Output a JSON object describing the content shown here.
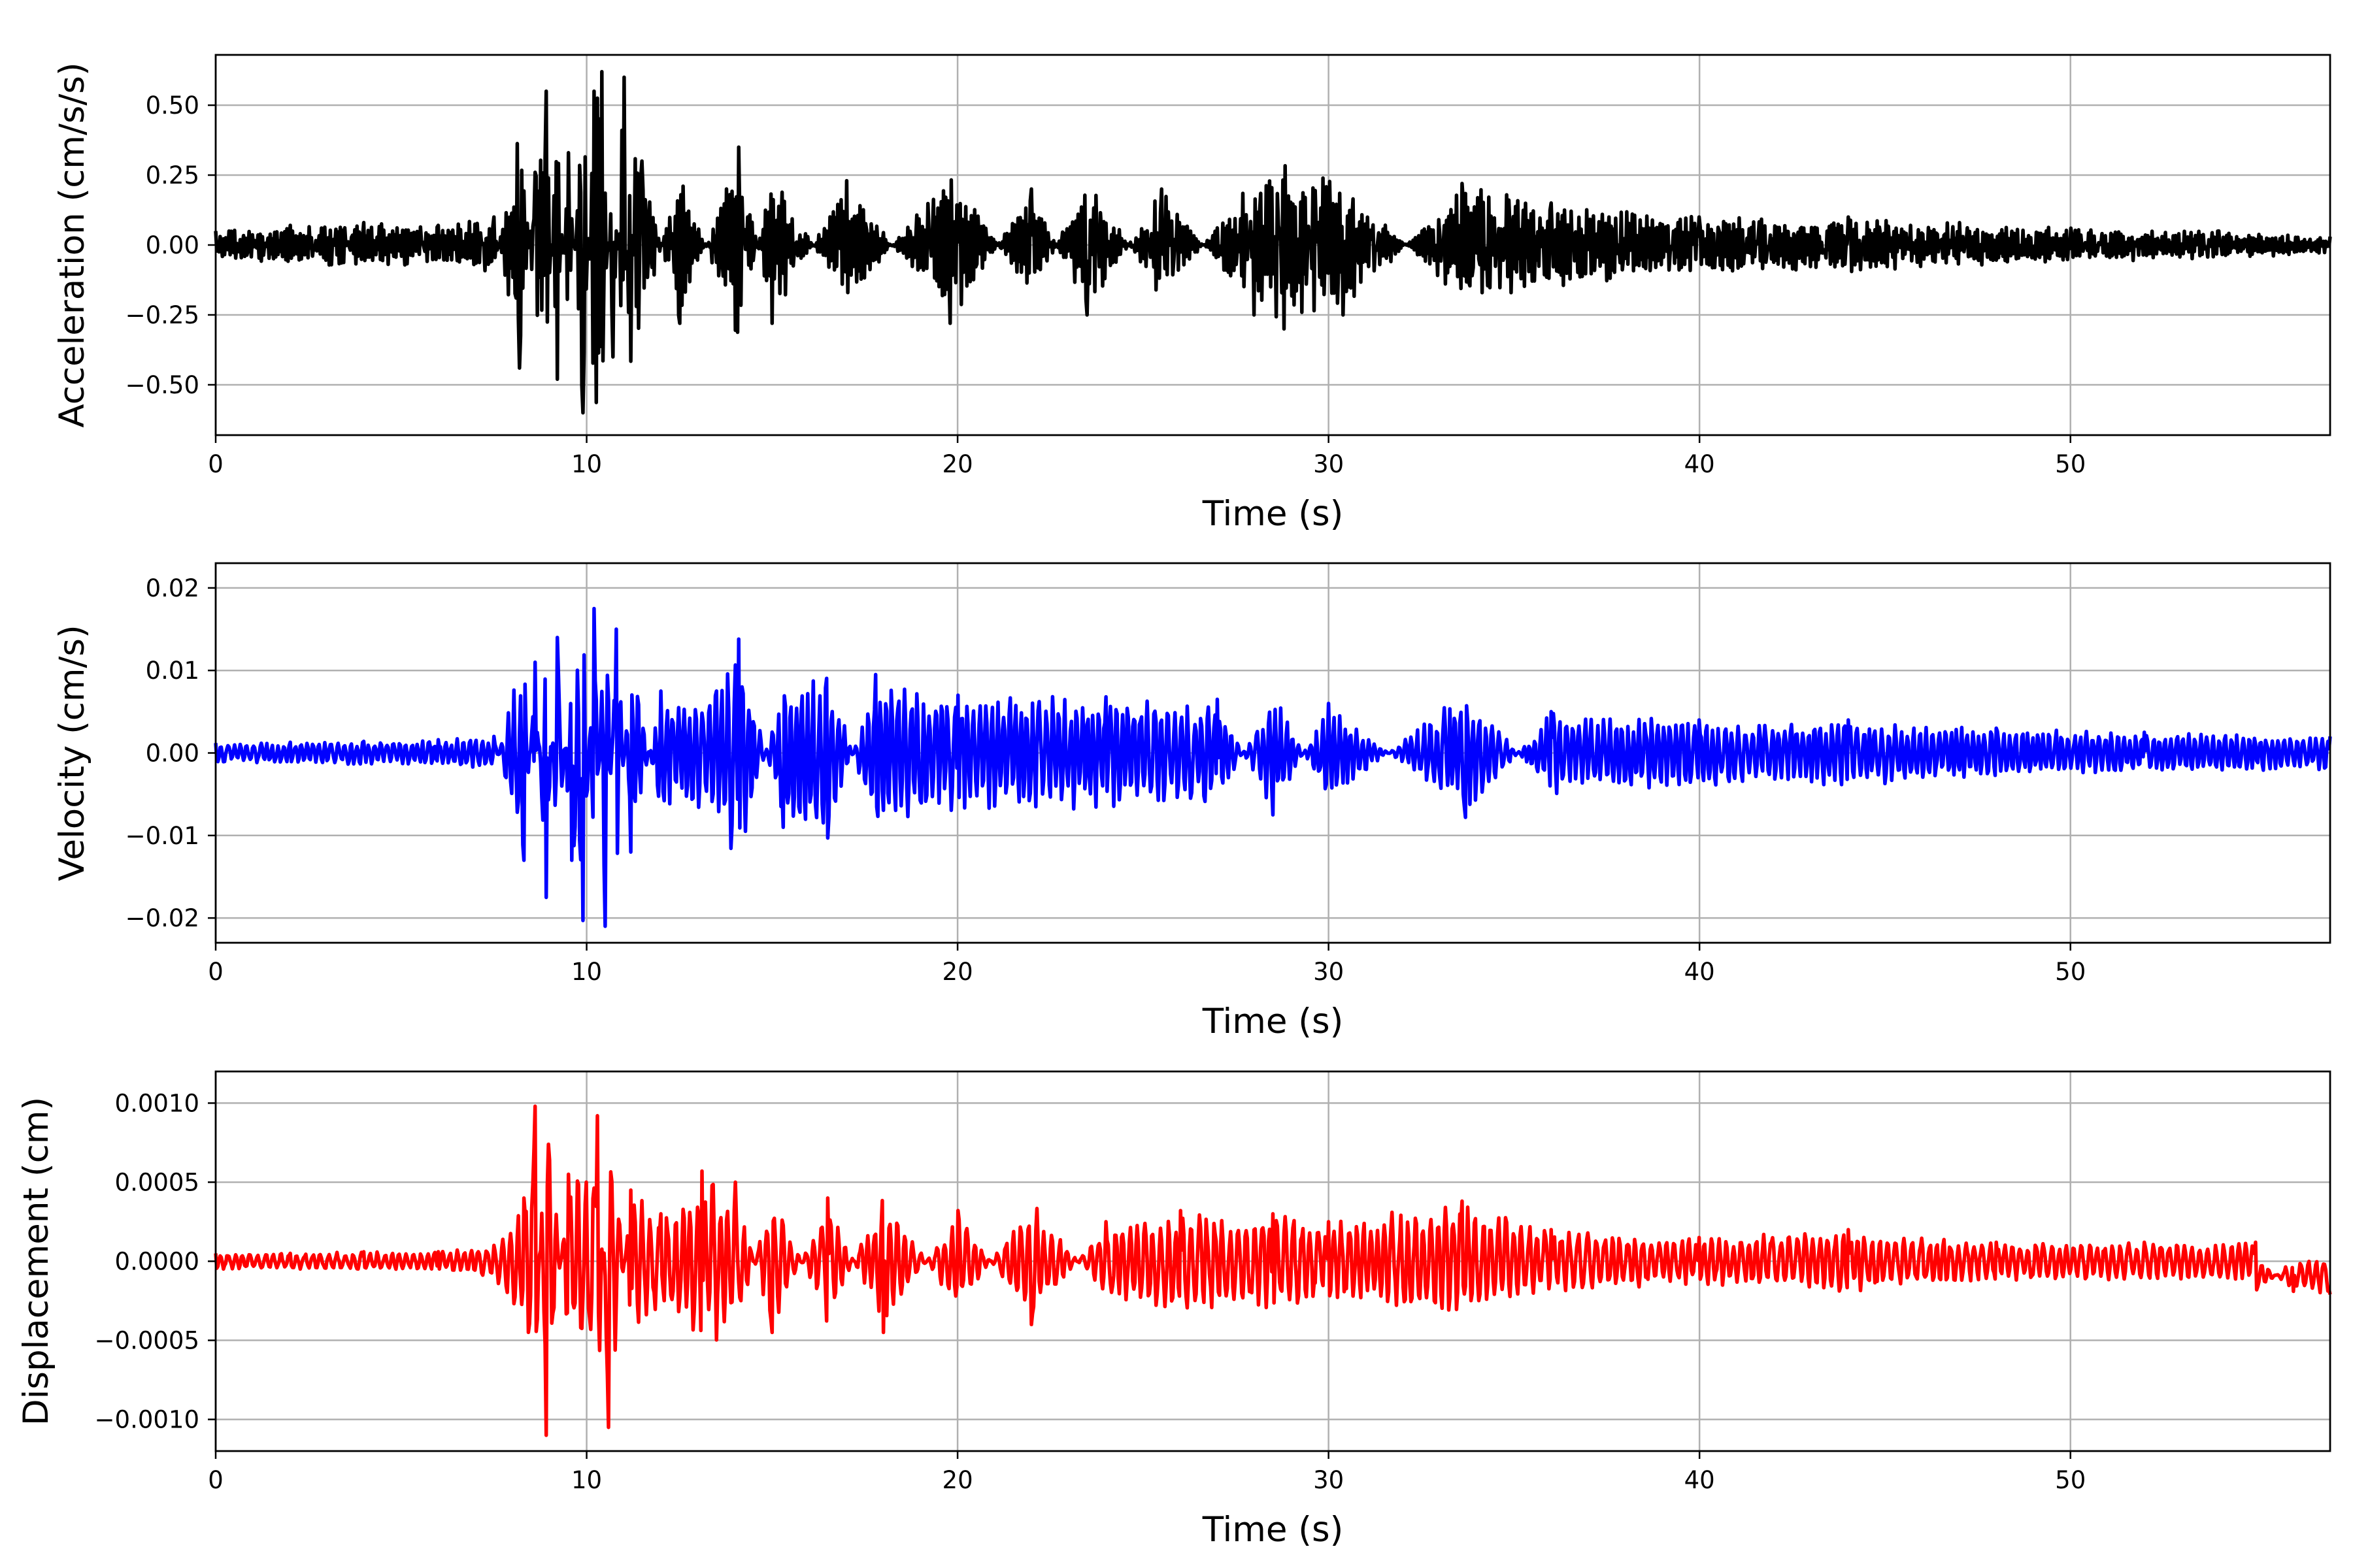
{
  "chart_data": [
    {
      "type": "line",
      "xlabel": "Time (s)",
      "ylabel": "Acceleration (cm/s/s)",
      "xlim": [
        0,
        57
      ],
      "ylim": [
        -0.68,
        0.68
      ],
      "xticks": [
        0,
        10,
        20,
        30,
        40,
        50
      ],
      "xtick_labels": [
        "0",
        "10",
        "20",
        "30",
        "40",
        "50"
      ],
      "yticks": [
        0.5,
        0.25,
        0.0,
        -0.25,
        -0.5
      ],
      "ytick_labels": [
        "0.50",
        "0.25",
        "0.00",
        "−0.25",
        "−0.50"
      ],
      "grid": true,
      "color": "#000000",
      "series": [
        {
          "x": [
            0,
            2,
            4,
            6,
            7.5,
            8.2,
            8.6,
            8.9,
            9.2,
            9.5,
            9.9,
            10.2,
            10.4,
            10.7,
            11.0,
            11.5,
            12.5,
            14.1,
            15.0,
            17.0,
            19.8,
            22.0,
            23.5,
            25.5,
            28.0,
            28.8,
            30.4,
            33.6,
            36.0,
            40.0,
            44.0,
            47.0,
            50.0,
            54.0,
            57.0
          ],
          "y": [
            0.05,
            0.07,
            0.08,
            0.07,
            0.1,
            -0.44,
            0.26,
            0.55,
            -0.48,
            0.33,
            -0.6,
            0.55,
            0.62,
            -0.4,
            0.6,
            0.3,
            -0.28,
            0.35,
            -0.28,
            0.23,
            -0.28,
            0.2,
            -0.25,
            0.2,
            -0.25,
            -0.3,
            -0.25,
            0.22,
            0.15,
            0.1,
            0.1,
            0.08,
            0.06,
            0.05,
            0.03
          ],
          "envelope": true
        }
      ]
    },
    {
      "type": "line",
      "xlabel": "Time (s)",
      "ylabel": "Velocity (cm/s)",
      "xlim": [
        0,
        57
      ],
      "ylim": [
        -0.023,
        0.023
      ],
      "xticks": [
        0,
        10,
        20,
        30,
        40,
        50
      ],
      "xtick_labels": [
        "0",
        "10",
        "20",
        "30",
        "40",
        "50"
      ],
      "yticks": [
        0.02,
        0.01,
        0.0,
        -0.01,
        -0.02
      ],
      "ytick_labels": [
        "0.02",
        "0.01",
        "0.00",
        "−0.01",
        "−0.02"
      ],
      "grid": true,
      "color": "#0000ff",
      "series": [
        {
          "x": [
            0,
            2,
            4,
            6,
            7.5,
            8.3,
            8.6,
            8.9,
            9.2,
            9.6,
            9.9,
            10.2,
            10.5,
            10.8,
            11.2,
            12.0,
            13.5,
            14.1,
            15.3,
            16.5,
            17.8,
            20.0,
            24.0,
            27.0,
            28.5,
            30.0,
            33.7,
            36.0,
            40.0,
            44.0,
            48.0,
            52.0,
            57.0
          ],
          "y": [
            0.0012,
            0.0013,
            0.0014,
            0.0016,
            0.002,
            -0.013,
            0.011,
            -0.0175,
            0.014,
            -0.013,
            -0.0203,
            0.0175,
            -0.021,
            0.015,
            -0.012,
            0.0075,
            0.0075,
            0.0138,
            -0.009,
            -0.0103,
            0.0095,
            0.007,
            0.0068,
            0.0065,
            -0.0075,
            0.006,
            -0.0078,
            0.005,
            0.004,
            0.004,
            0.003,
            0.0025,
            0.002
          ],
          "envelope": true
        }
      ]
    },
    {
      "type": "line",
      "xlabel": "Time (s)",
      "ylabel": "Displacement (cm)",
      "xlim": [
        0,
        57
      ],
      "ylim": [
        -0.0012,
        0.0012
      ],
      "xticks": [
        0,
        10,
        20,
        30,
        40,
        50
      ],
      "xtick_labels": [
        "0",
        "10",
        "20",
        "30",
        "40",
        "50"
      ],
      "yticks": [
        0.001,
        0.0005,
        0.0,
        -0.0005,
        -0.001
      ],
      "ytick_labels": [
        "0.0010",
        "0.0005",
        "0.0000",
        "−0.0005",
        "−0.0010"
      ],
      "grid": true,
      "color": "#ff0000",
      "series": [
        {
          "x": [
            0,
            2,
            4,
            6,
            7.5,
            8.3,
            8.6,
            8.9,
            9.5,
            10.0,
            10.3,
            10.6,
            11.2,
            12.0,
            13.1,
            14.0,
            15.0,
            16.5,
            18.0,
            20.0,
            22.0,
            24.0,
            26.0,
            28.5,
            30.0,
            33.6,
            36.0,
            40.0,
            44.0,
            48.0,
            52.0,
            55.0,
            56.0,
            57.0
          ],
          "y": [
            5e-05,
            5e-05,
            6e-05,
            6e-05,
            0.0001,
            0.0004,
            0.00098,
            -0.0011,
            0.00055,
            0.0005,
            0.00092,
            -0.00105,
            0.00045,
            0.0003,
            0.00057,
            0.0005,
            -0.00045,
            0.0004,
            -0.00045,
            0.00032,
            -0.0004,
            0.00025,
            0.00032,
            0.0003,
            0.00025,
            0.00038,
            0.0002,
            0.00015,
            0.0002,
            0.00012,
            0.00012,
            0.00012,
            -0.0001,
            -0.00012
          ],
          "envelope": true
        }
      ]
    }
  ]
}
